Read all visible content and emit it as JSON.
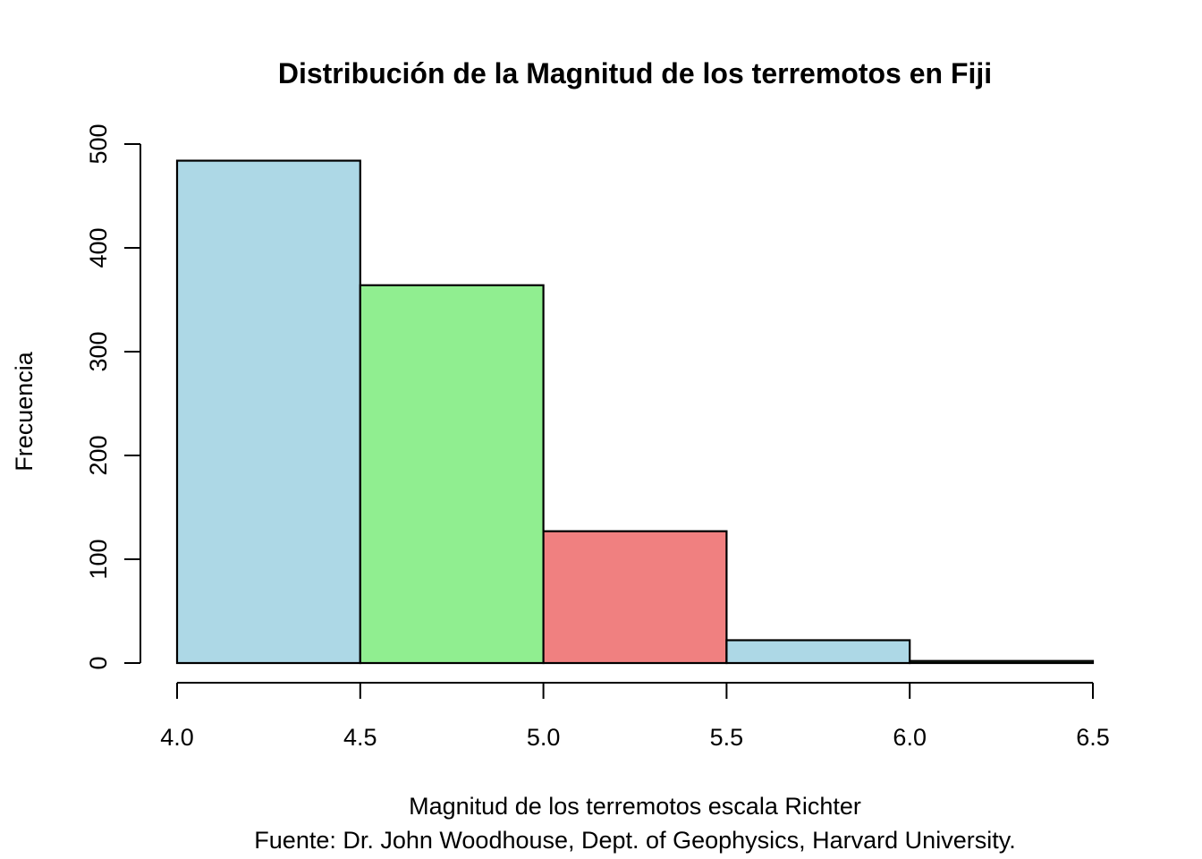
{
  "chart_data": {
    "type": "bar",
    "title": "Distribución de la Magnitud de los terremotos en Fiji",
    "xlabel": "Magnitud de los terremotos escala Richter",
    "subtitle": "Fuente: Dr. John Woodhouse, Dept. of Geophysics, Harvard University.",
    "ylabel": "Frecuencia",
    "bins": [
      {
        "from": 4.0,
        "to": 4.5,
        "count": 484,
        "color": "#ADD8E6"
      },
      {
        "from": 4.5,
        "to": 5.0,
        "count": 364,
        "color": "#90EE90"
      },
      {
        "from": 5.0,
        "to": 5.5,
        "count": 127,
        "color": "#F08080"
      },
      {
        "from": 5.5,
        "to": 6.0,
        "count": 22,
        "color": "#ADD8E6"
      },
      {
        "from": 6.0,
        "to": 6.5,
        "count": 2,
        "color": "#90EE90"
      }
    ],
    "xlim": [
      4.0,
      6.5
    ],
    "ylim": [
      0,
      500
    ],
    "x_ticks": [
      "4.0",
      "4.5",
      "5.0",
      "5.5",
      "6.0",
      "6.5"
    ],
    "y_ticks": [
      "0",
      "100",
      "200",
      "300",
      "400",
      "500"
    ],
    "grid": false,
    "legend": "none"
  }
}
